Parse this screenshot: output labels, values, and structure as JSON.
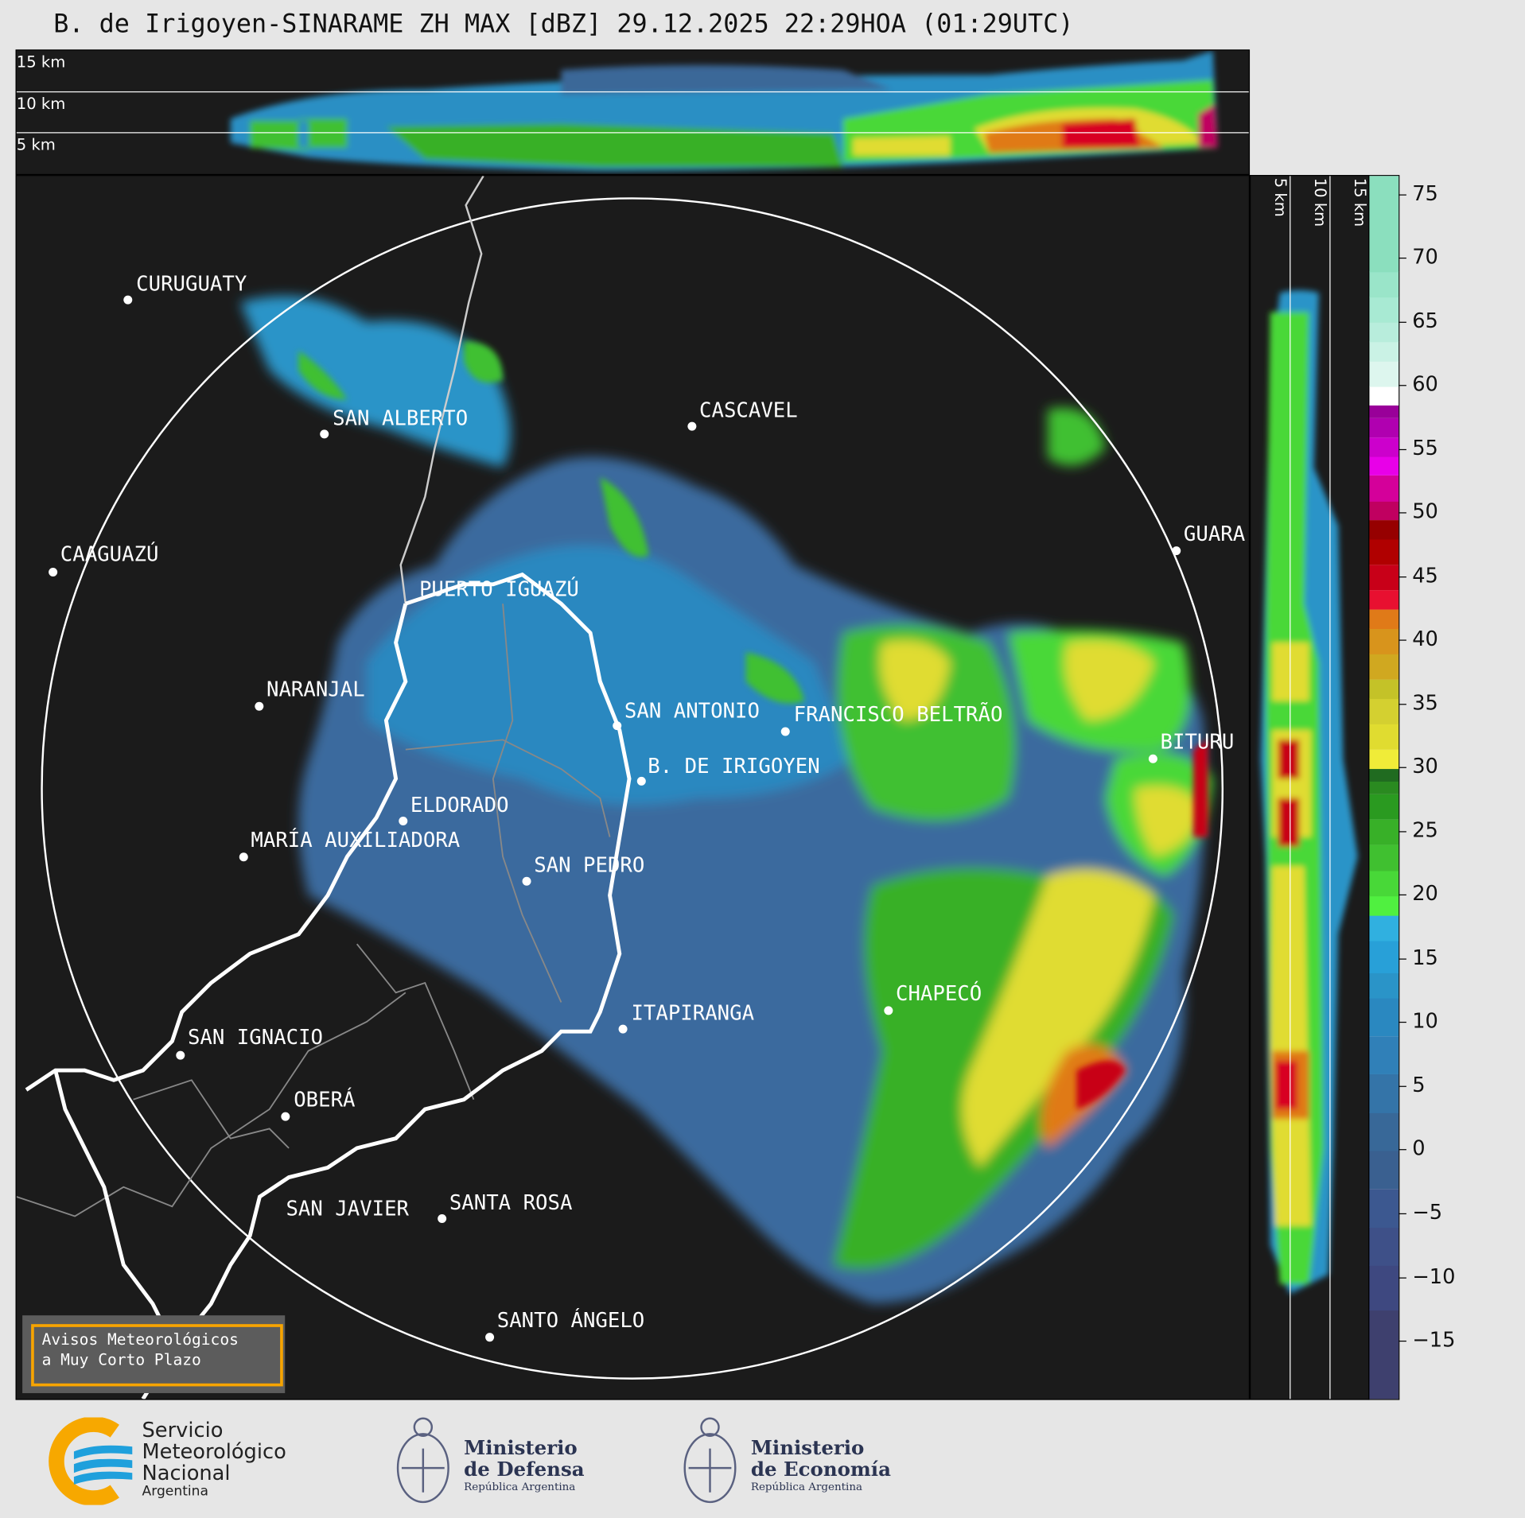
{
  "title": "B. de Irigoyen-SINARAME ZH MAX [dBZ] 29.12.2025 22:29HOA (01:29UTC)",
  "product": "ZH MAX",
  "units": "dBZ",
  "top_panel": {
    "height_labels": [
      "15 km",
      "10 km",
      "5 km"
    ]
  },
  "side_panel": {
    "height_labels": [
      "5 km",
      "10 km",
      "15 km"
    ]
  },
  "colorbar": {
    "min": -19.5,
    "max": 76.5,
    "tick_labels": [
      "75",
      "70",
      "65",
      "60",
      "55",
      "50",
      "45",
      "40",
      "35",
      "30",
      "25",
      "20",
      "15",
      "10",
      "5",
      "0",
      "−5",
      "−10",
      "−15"
    ],
    "ticks": [
      75,
      70,
      65,
      60,
      55,
      50,
      45,
      40,
      35,
      30,
      25,
      20,
      15,
      10,
      5,
      0,
      -5,
      -10,
      -15
    ],
    "colors": [
      [
        -19.5,
        "#3e406e"
      ],
      [
        -12.5,
        "#3e4880"
      ],
      [
        -9,
        "#3e5088"
      ],
      [
        -6,
        "#3c5890"
      ],
      [
        -3,
        "#3a6090"
      ],
      [
        0,
        "#386898"
      ],
      [
        3,
        "#3474a8"
      ],
      [
        6,
        "#3080b8"
      ],
      [
        9,
        "#2a88c0"
      ],
      [
        12,
        "#2a94c8"
      ],
      [
        14,
        "#28a0d8"
      ],
      [
        16.5,
        "#30b0e0"
      ],
      [
        18.5,
        "#50f040"
      ],
      [
        20,
        "#48d838"
      ],
      [
        22,
        "#40c030"
      ],
      [
        24,
        "#38b028"
      ],
      [
        26,
        "#2a9a20"
      ],
      [
        28,
        "#2a8a20"
      ],
      [
        29,
        "#206b20"
      ],
      [
        30,
        "#f0ec38"
      ],
      [
        31.5,
        "#e0dc30"
      ],
      [
        33.5,
        "#d4d030"
      ],
      [
        35.5,
        "#c4c228"
      ],
      [
        37,
        "#d0a820"
      ],
      [
        39,
        "#d8941c"
      ],
      [
        41,
        "#e07a18"
      ],
      [
        42.5,
        "#e81030"
      ],
      [
        44,
        "#c80018"
      ],
      [
        46,
        "#b00000"
      ],
      [
        48,
        "#960000"
      ],
      [
        49.5,
        "#c00060"
      ],
      [
        51,
        "#d4009a"
      ],
      [
        53,
        "#e800e8"
      ],
      [
        54.5,
        "#cc00cc"
      ],
      [
        56,
        "#b000b0"
      ],
      [
        57.5,
        "#990099"
      ],
      [
        58.5,
        "#ffffff"
      ],
      [
        60,
        "#ddf6ee"
      ],
      [
        62,
        "#caf2e5"
      ],
      [
        63.5,
        "#b8eddc"
      ],
      [
        65,
        "#a8ead3"
      ],
      [
        67,
        "#9ae5c9"
      ],
      [
        69,
        "#8bdfbe"
      ]
    ]
  },
  "cities": [
    {
      "name": "CURUGUATY",
      "dot": true
    },
    {
      "name": "SAN ALBERTO",
      "dot": true
    },
    {
      "name": "CASCAVEL",
      "dot": true
    },
    {
      "name": "CAAGUAZÚ",
      "dot": true
    },
    {
      "name": "GUARA",
      "dot": true
    },
    {
      "name": "PUERTO IGUAZÚ",
      "dot": false
    },
    {
      "name": "NARANJAL",
      "dot": true
    },
    {
      "name": "SAN ANTONIO",
      "dot": true
    },
    {
      "name": "FRANCISCO BELTRÃO",
      "dot": true
    },
    {
      "name": "BITURU",
      "dot": true
    },
    {
      "name": "B. DE IRIGOYEN",
      "dot": true
    },
    {
      "name": "ELDORADO",
      "dot": true
    },
    {
      "name": "MARÍA AUXILIADORA",
      "dot": true
    },
    {
      "name": "SAN PEDRO",
      "dot": true
    },
    {
      "name": "CHAPECÓ",
      "dot": true
    },
    {
      "name": "ITAPIRANGA",
      "dot": true
    },
    {
      "name": "SAN IGNACIO",
      "dot": true
    },
    {
      "name": "OBERÁ",
      "dot": true
    },
    {
      "name": "SAN JAVIER",
      "dot": false
    },
    {
      "name": "SANTA ROSA",
      "dot": true
    },
    {
      "name": "SANTO ÁNGELO",
      "dot": true
    }
  ],
  "warning_box": {
    "line1": "Avisos Meteorológicos",
    "line2": "a Muy Corto Plazo",
    "border_color": "#f7a400"
  },
  "footer": {
    "smn": {
      "line1": "Servicio",
      "line2": "Meteorológico",
      "line3": "Nacional",
      "line4": "Argentina"
    },
    "defensa": {
      "line1": "Ministerio",
      "line2": "de Defensa",
      "line3": "República Argentina"
    },
    "economia": {
      "line1": "Ministerio",
      "line2": "de Economía",
      "line3": "República Argentina"
    }
  }
}
